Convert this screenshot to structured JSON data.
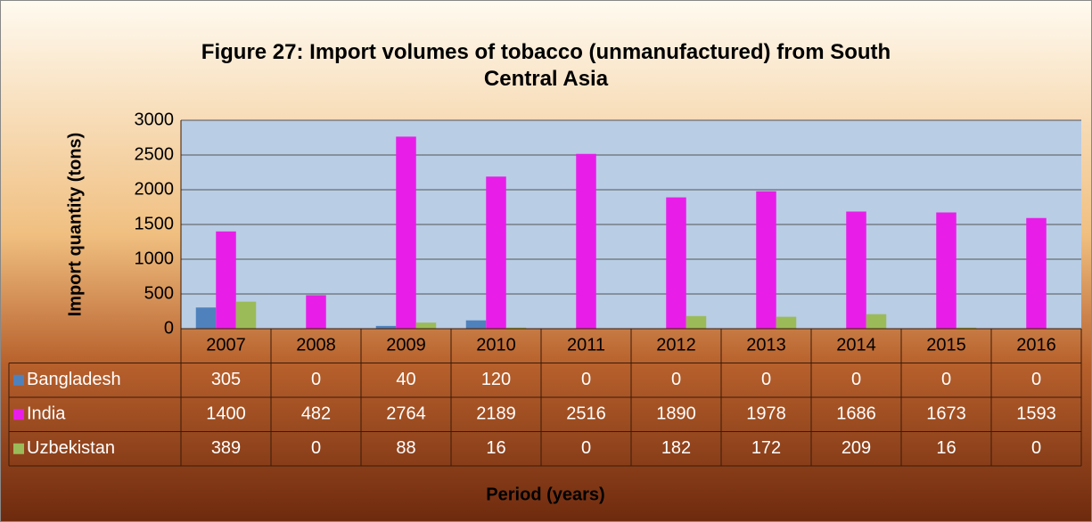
{
  "chart_data": {
    "type": "bar",
    "title": "Figure 27: Import volumes of tobacco (unmanufactured) from South Central Asia",
    "x_label": "Period (years)",
    "y_label": "Import quantity (tons)",
    "categories": [
      "2007",
      "2008",
      "2009",
      "2010",
      "2011",
      "2012",
      "2013",
      "2014",
      "2015",
      "2016"
    ],
    "series": [
      {
        "name": "Bangladesh",
        "color": "#4f81bd",
        "values": [
          305,
          0,
          40,
          120,
          0,
          0,
          0,
          0,
          0,
          0
        ]
      },
      {
        "name": "India",
        "color": "#e81ee8",
        "values": [
          1400,
          482,
          2764,
          2189,
          2516,
          1890,
          1978,
          1686,
          1673,
          1593
        ]
      },
      {
        "name": "Uzbekistan",
        "color": "#9bbb59",
        "values": [
          389,
          0,
          88,
          16,
          0,
          182,
          172,
          209,
          16,
          0
        ]
      }
    ],
    "ylim": [
      0,
      3000
    ],
    "yticks": [
      0,
      500,
      1000,
      1500,
      2000,
      2500,
      3000
    ],
    "grid": true
  }
}
